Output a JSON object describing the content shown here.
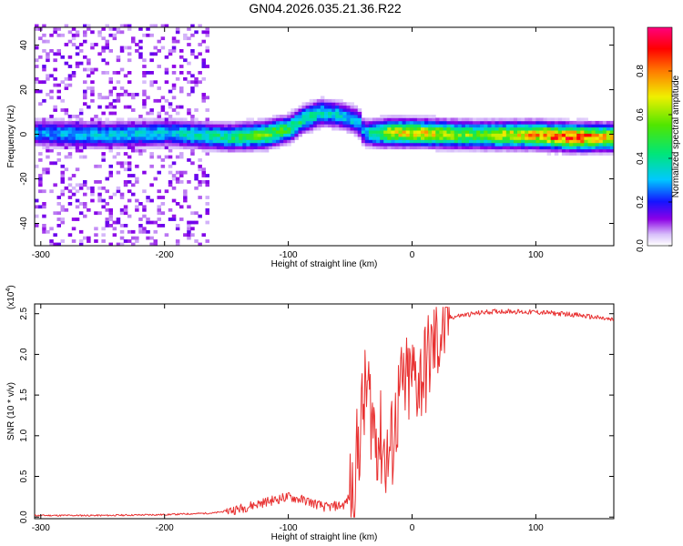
{
  "figure": {
    "title": "GN04.2026.035.21.36.R22"
  },
  "chart_data": [
    {
      "type": "heatmap",
      "xlabel": "Height of straight line (km)",
      "ylabel": "Frequency (Hz)",
      "xlim": [
        -305,
        163
      ],
      "ylim": [
        -50,
        48
      ],
      "x_ticks": [
        -300,
        -200,
        -100,
        0,
        100
      ],
      "x_tick_labels": [
        "-300",
        "-200",
        "-100",
        "0",
        "100"
      ],
      "y_ticks": [
        -40,
        -20,
        0,
        20,
        40
      ],
      "y_tick_labels": [
        "-40",
        "-20",
        "0",
        "20",
        "40"
      ],
      "colorbar": {
        "label": "Normalized spectral amplitude",
        "range": [
          0,
          1
        ],
        "ticks": [
          0.0,
          0.2,
          0.4,
          0.6,
          0.8
        ],
        "tick_labels": [
          "0.0",
          "0.2",
          "0.4",
          "0.6",
          "0.8"
        ],
        "colormap": "rainbow (white-violet-blue-cyan-green-yellow-red-magenta)"
      },
      "ridge": [
        {
          "x": -305,
          "freq": 0,
          "amp": 0.3
        },
        {
          "x": -250,
          "freq": -1,
          "amp": 0.35
        },
        {
          "x": -200,
          "freq": 0,
          "amp": 0.35
        },
        {
          "x": -150,
          "freq": -2,
          "amp": 0.45
        },
        {
          "x": -120,
          "freq": -1,
          "amp": 0.6
        },
        {
          "x": -100,
          "freq": 2,
          "amp": 0.5
        },
        {
          "x": -90,
          "freq": 6,
          "amp": 0.45
        },
        {
          "x": -75,
          "freq": 9,
          "amp": 0.4
        },
        {
          "x": -60,
          "freq": 8,
          "amp": 0.35
        },
        {
          "x": -45,
          "freq": 5,
          "amp": 0.35
        },
        {
          "x": -40,
          "freq": 0,
          "amp": 0.3
        },
        {
          "x": -20,
          "freq": 0,
          "amp": 0.7
        },
        {
          "x": 0,
          "freq": 0,
          "amp": 0.75
        },
        {
          "x": 50,
          "freq": -1,
          "amp": 0.6
        },
        {
          "x": 100,
          "freq": -1,
          "amp": 0.8
        },
        {
          "x": 130,
          "freq": -2,
          "amp": 0.95
        },
        {
          "x": 163,
          "freq": -2,
          "amp": 0.7
        }
      ]
    },
    {
      "type": "line",
      "xlabel": "Height of straight line (km)",
      "ylabel": "SNR (10 * v/v)",
      "y_multiplier_label": "(x10",
      "y_multiplier_exp": "4",
      "xlim": [
        -305,
        163
      ],
      "ylim": [
        -0.02,
        2.62
      ],
      "x_ticks": [
        -300,
        -200,
        -100,
        0,
        100
      ],
      "x_tick_labels": [
        "-300",
        "-200",
        "-100",
        "0",
        "100"
      ],
      "y_ticks": [
        0.0,
        0.5,
        1.0,
        1.5,
        2.0,
        2.5
      ],
      "y_tick_labels": [
        "0.0",
        "0.5",
        "1.0",
        "1.5",
        "2.0",
        "2.5"
      ],
      "series": [
        {
          "color": "#e83030",
          "x": [
            -305,
            -250,
            -200,
            -160,
            -140,
            -120,
            -100,
            -85,
            -70,
            -55,
            -48,
            -44,
            -40,
            -36,
            -32,
            -28,
            -24,
            -20,
            -16,
            -10,
            -5,
            0,
            5,
            10,
            15,
            20,
            25,
            30,
            40,
            50,
            60,
            70,
            80,
            90,
            100,
            110,
            120,
            130,
            140,
            150,
            163
          ],
          "y": [
            0.02,
            0.02,
            0.03,
            0.05,
            0.1,
            0.18,
            0.25,
            0.2,
            0.12,
            0.15,
            0.3,
            0.8,
            1.3,
            1.6,
            1.2,
            1.0,
            0.9,
            0.7,
            0.9,
            1.5,
            1.6,
            1.7,
            1.7,
            1.8,
            2.0,
            2.2,
            2.3,
            2.45,
            2.48,
            2.5,
            2.52,
            2.53,
            2.53,
            2.52,
            2.52,
            2.51,
            2.5,
            2.49,
            2.47,
            2.45,
            2.42
          ]
        }
      ]
    }
  ]
}
